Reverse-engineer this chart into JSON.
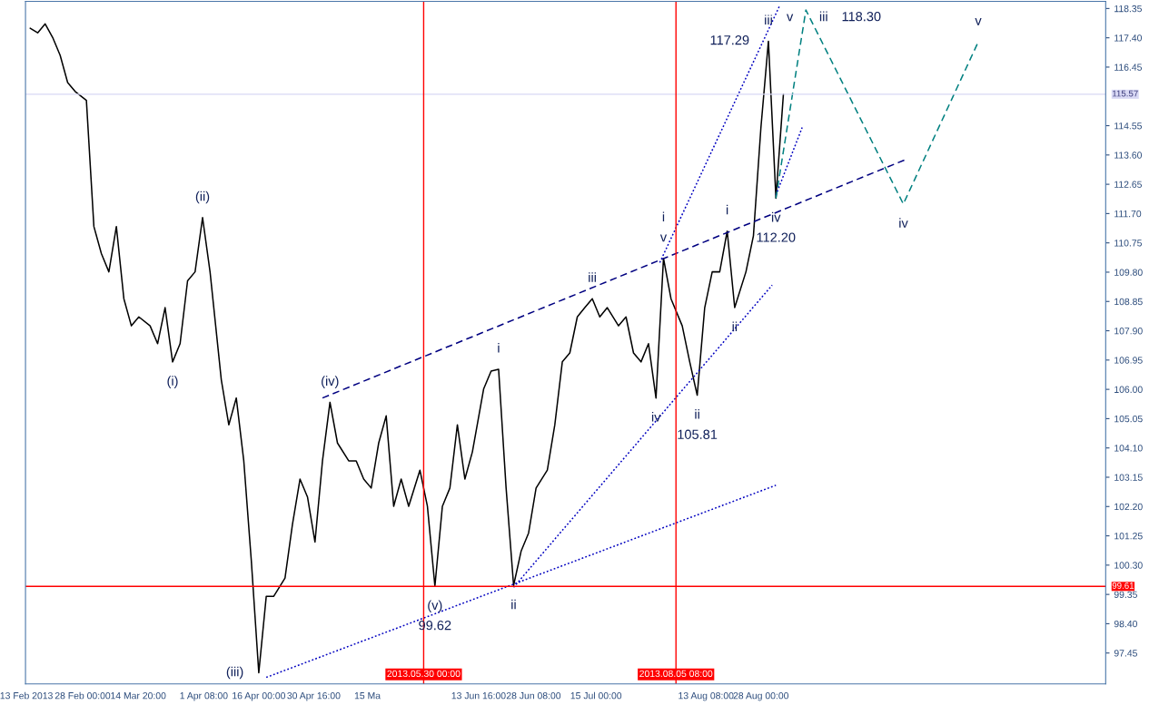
{
  "chart_data": {
    "type": "line",
    "xlim": [
      "2013-02-12T18:00",
      "2013-11-28"
    ],
    "ylim": [
      96.45,
      118.58
    ],
    "xticks": [
      {
        "value": "2013-02-13",
        "label": "13 Feb 2013"
      },
      {
        "value": "2013-02-28T00:00",
        "label": "28 Feb 00:00"
      },
      {
        "value": "2013-03-14T20:00",
        "label": "14 Mar 20:00"
      },
      {
        "value": "2013-04-01T08:00",
        "label": "1 Apr 08:00"
      },
      {
        "value": "2013-04-16T00:00",
        "label": "16 Apr 00:00"
      },
      {
        "value": "2013-04-30T16:00",
        "label": "30 Apr 16:00"
      },
      {
        "value": "2013-05-15T00:00",
        "label": "15 Ma"
      },
      {
        "value": "2013-06-13T16:00",
        "label": "13 Jun 16:00"
      },
      {
        "value": "2013-06-28T08:00",
        "label": "28 Jun 08:00"
      },
      {
        "value": "2013-07-15T00:00",
        "label": "15 Jul 00:00"
      },
      {
        "value": "2013-08-13T08:00",
        "label": "13 Aug 08:00"
      },
      {
        "value": "2013-08-28T00:00",
        "label": "28 Aug 00:00"
      }
    ],
    "yticks": [
      {
        "value": 97.45,
        "label": "97.45"
      },
      {
        "value": 98.4,
        "label": "98.40"
      },
      {
        "value": 99.35,
        "label": "99.35"
      },
      {
        "value": 100.3,
        "label": "100.30"
      },
      {
        "value": 101.25,
        "label": "101.25"
      },
      {
        "value": 102.2,
        "label": "102.20"
      },
      {
        "value": 103.15,
        "label": "103.15"
      },
      {
        "value": 104.1,
        "label": "104.10"
      },
      {
        "value": 105.05,
        "label": "105.05"
      },
      {
        "value": 106.0,
        "label": "106.00"
      },
      {
        "value": 106.95,
        "label": "106.95"
      },
      {
        "value": 107.9,
        "label": "107.90"
      },
      {
        "value": 108.85,
        "label": "108.85"
      },
      {
        "value": 109.8,
        "label": "109.80"
      },
      {
        "value": 110.75,
        "label": "110.75"
      },
      {
        "value": 111.7,
        "label": "111.70"
      },
      {
        "value": 112.65,
        "label": "112.65"
      },
      {
        "value": 113.6,
        "label": "113.60"
      },
      {
        "value": 114.55,
        "label": "114.55"
      },
      {
        "value": 116.45,
        "label": "116.45"
      },
      {
        "value": 117.4,
        "label": "117.40"
      },
      {
        "value": 118.35,
        "label": "118.35"
      }
    ],
    "grid": false,
    "series": [
      {
        "color": "#000000",
        "line_style": "solid",
        "x": [
          "2013-02-14",
          "2013-02-16",
          "2013-02-18",
          "2013-02-20",
          "2013-02-22",
          "2013-02-24",
          "2013-02-26",
          "2013-03-01",
          "2013-03-03",
          "2013-03-05",
          "2013-03-07",
          "2013-03-09",
          "2013-03-11",
          "2013-03-13",
          "2013-03-15",
          "2013-03-18",
          "2013-03-20",
          "2013-03-22",
          "2013-03-24",
          "2013-03-26",
          "2013-03-28",
          "2013-03-30",
          "2013-04-01",
          "2013-04-03",
          "2013-04-06",
          "2013-04-08",
          "2013-04-10",
          "2013-04-12",
          "2013-04-14",
          "2013-04-16",
          "2013-04-18",
          "2013-04-20",
          "2013-04-23",
          "2013-04-25",
          "2013-04-27",
          "2013-04-29",
          "2013-05-01",
          "2013-05-03",
          "2013-05-05",
          "2013-05-07",
          "2013-05-10",
          "2013-05-12",
          "2013-05-14",
          "2013-05-16",
          "2013-05-18",
          "2013-05-20",
          "2013-05-22",
          "2013-05-24",
          "2013-05-26",
          "2013-05-29",
          "2013-05-31",
          "2013-06-02",
          "2013-06-04",
          "2013-06-06",
          "2013-06-08",
          "2013-06-10",
          "2013-06-12",
          "2013-06-15",
          "2013-06-17",
          "2013-06-19",
          "2013-06-21",
          "2013-06-23",
          "2013-06-25",
          "2013-06-27",
          "2013-06-29",
          "2013-07-02",
          "2013-07-04",
          "2013-07-06",
          "2013-07-08",
          "2013-07-10",
          "2013-07-12",
          "2013-07-14",
          "2013-07-16",
          "2013-07-18",
          "2013-07-21",
          "2013-07-23",
          "2013-07-25",
          "2013-07-27",
          "2013-07-29",
          "2013-07-31",
          "2013-08-02",
          "2013-08-04",
          "2013-08-07",
          "2013-08-09",
          "2013-08-11",
          "2013-08-13",
          "2013-08-15",
          "2013-08-17",
          "2013-08-19",
          "2013-08-21",
          "2013-08-24",
          "2013-08-26",
          "2013-08-28",
          "2013-08-30",
          "2013-09-01",
          "2013-09-03"
        ],
        "values": [
          117.71,
          117.56,
          117.85,
          117.41,
          116.83,
          115.95,
          115.66,
          115.37,
          111.28,
          110.4,
          109.81,
          111.28,
          108.94,
          108.06,
          108.35,
          108.06,
          107.48,
          108.65,
          106.89,
          107.48,
          109.52,
          109.81,
          111.57,
          109.81,
          106.31,
          104.85,
          105.72,
          103.68,
          100.46,
          96.81,
          99.29,
          99.29,
          99.88,
          101.63,
          103.09,
          102.51,
          101.05,
          103.68,
          105.58,
          104.26,
          103.68,
          103.68,
          103.09,
          102.8,
          104.26,
          105.14,
          102.21,
          103.09,
          102.21,
          103.38,
          102.21,
          99.62,
          102.21,
          102.8,
          104.85,
          103.09,
          103.97,
          106.01,
          106.59,
          106.65,
          102.8,
          99.64,
          100.75,
          101.34,
          102.8,
          103.38,
          104.85,
          106.89,
          107.18,
          108.35,
          108.65,
          108.94,
          108.35,
          108.65,
          108.06,
          108.35,
          107.18,
          106.89,
          107.48,
          105.72,
          110.25,
          108.94,
          108.06,
          106.89,
          105.81,
          108.65,
          109.81,
          109.81,
          111.13,
          108.65,
          109.81,
          110.98,
          114.49,
          117.29,
          112.2,
          115.57
        ]
      },
      {
        "color": "#000080",
        "line_style": "dashed",
        "x": [
          "2013-05-03",
          "2013-10-06"
        ],
        "values": [
          105.72,
          113.47
        ]
      },
      {
        "color": "#0000c0",
        "line_style": "dotted",
        "x": [
          "2013-04-18",
          "2013-09-01"
        ],
        "values": [
          96.66,
          102.89
        ]
      },
      {
        "color": "#0000c0",
        "line_style": "dotted",
        "x": [
          "2013-06-23",
          "2013-08-31"
        ],
        "values": [
          99.58,
          109.38
        ]
      },
      {
        "color": "#0000c0",
        "line_style": "dotted",
        "x": [
          "2013-08-01",
          "2013-09-02"
        ],
        "values": [
          110.11,
          118.44
        ]
      },
      {
        "color": "#0000c0",
        "line_style": "dotted",
        "x": [
          "2013-09-01",
          "2013-09-08"
        ],
        "values": [
          112.3,
          114.49
        ]
      },
      {
        "color": "#008080",
        "line_style": "dashed",
        "x": [
          "2013-09-01",
          "2013-09-09",
          "2013-10-05",
          "2013-10-25"
        ],
        "values": [
          112.2,
          118.3,
          112.01,
          117.27
        ]
      }
    ],
    "ref_lines": [
      {
        "axis": "y",
        "value": 99.61,
        "label": "99.61",
        "color": "#ff0000"
      },
      {
        "axis": "y",
        "value": 115.57,
        "label": "115.57",
        "color": "#d8d8f4"
      },
      {
        "axis": "x",
        "value": "2013-05-30T00:00",
        "label": "2013.05.30 00:00",
        "color": "#ff0000"
      },
      {
        "axis": "x",
        "value": "2013-08-05T08:00",
        "label": "2013.08.05 08:00",
        "color": "#ff0000"
      }
    ],
    "annotations": [
      {
        "text": "(ii)",
        "x": "2013-04-01",
        "y": 111.57
      },
      {
        "text": "(i)",
        "x": "2013-03-24",
        "y": 106.89
      },
      {
        "text": "(iii)",
        "x": "2013-04-16",
        "y": 96.81
      },
      {
        "text": "(iv)",
        "x": "2013-05-05",
        "y": 105.58
      },
      {
        "text": "(v)",
        "x": "2013-06-02",
        "y": 99.62
      },
      {
        "text": "99.62",
        "x": "2013-06-02",
        "y": 99.62
      },
      {
        "text": "i",
        "x": "2013-06-19",
        "y": 106.65
      },
      {
        "text": "ii",
        "x": "2013-06-23",
        "y": 99.64
      },
      {
        "text": "iii",
        "x": "2013-07-14",
        "y": 108.94
      },
      {
        "text": "iv",
        "x": "2013-07-31",
        "y": 105.72
      },
      {
        "text": "v",
        "x": "2013-08-02",
        "y": 110.25
      },
      {
        "text": "i",
        "x": "2013-08-02",
        "y": 110.25
      },
      {
        "text": "ii",
        "x": "2013-08-11",
        "y": 105.81
      },
      {
        "text": "105.81",
        "x": "2013-08-11",
        "y": 105.81
      },
      {
        "text": "i",
        "x": "2013-08-19",
        "y": 111.13
      },
      {
        "text": "ii",
        "x": "2013-08-21",
        "y": 108.65
      },
      {
        "text": "iii",
        "x": "2013-08-30",
        "y": 117.29
      },
      {
        "text": "117.29",
        "x": "2013-08-30",
        "y": 117.29
      },
      {
        "text": "iv",
        "x": "2013-09-01",
        "y": 112.2
      },
      {
        "text": "112.20",
        "x": "2013-09-01",
        "y": 112.2
      },
      {
        "text": "v",
        "x": "2013-09-09",
        "y": 118.3
      },
      {
        "text": "iii",
        "x": "2013-09-09",
        "y": 118.3
      },
      {
        "text": "118.30",
        "x": "2013-09-09",
        "y": 118.3
      },
      {
        "text": "iv",
        "x": "2013-10-05",
        "y": 112.01
      },
      {
        "text": "v",
        "x": "2013-10-25",
        "y": 117.27
      }
    ]
  }
}
